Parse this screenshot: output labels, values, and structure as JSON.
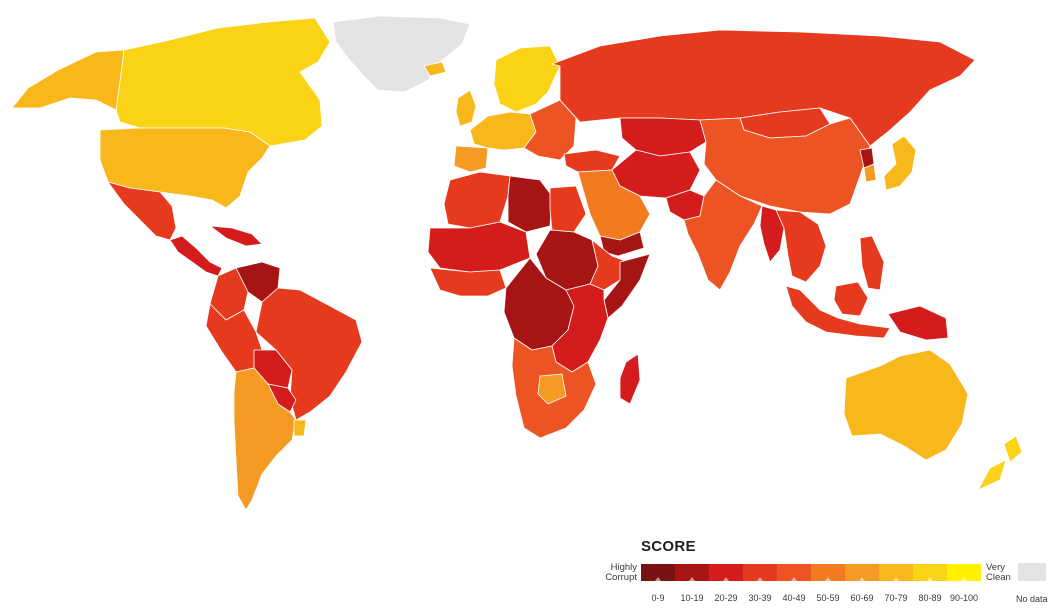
{
  "legend": {
    "title": "SCORE",
    "low_label_line1": "Highly",
    "low_label_line2": "Corrupt",
    "high_label_line1": "Very",
    "high_label_line2": "Clean",
    "no_data_label": "No data",
    "no_data_color": "#e3e3e3",
    "bins": [
      {
        "label": "0-9",
        "color": "#7a1212"
      },
      {
        "label": "10-19",
        "color": "#a71414"
      },
      {
        "label": "20-29",
        "color": "#d41c1c"
      },
      {
        "label": "30-39",
        "color": "#e53a1e"
      },
      {
        "label": "40-49",
        "color": "#ec5523"
      },
      {
        "label": "50-59",
        "color": "#f27b22"
      },
      {
        "label": "60-69",
        "color": "#f59a22"
      },
      {
        "label": "70-79",
        "color": "#f8b81c"
      },
      {
        "label": "80-89",
        "color": "#fad316"
      },
      {
        "label": "90-100",
        "color": "#fff100"
      }
    ]
  },
  "map": {
    "background": "#ffffff",
    "regions": [
      {
        "name": "greenland",
        "bin": "no-data"
      },
      {
        "name": "alaska",
        "bin": "70-79"
      },
      {
        "name": "canada",
        "bin": "80-89"
      },
      {
        "name": "usa",
        "bin": "70-79"
      },
      {
        "name": "mexico",
        "bin": "30-39"
      },
      {
        "name": "central-america",
        "bin": "20-29"
      },
      {
        "name": "caribbean",
        "bin": "20-29"
      },
      {
        "name": "venezuela",
        "bin": "10-19"
      },
      {
        "name": "colombia",
        "bin": "30-39"
      },
      {
        "name": "brazil",
        "bin": "30-39"
      },
      {
        "name": "peru",
        "bin": "30-39"
      },
      {
        "name": "bolivia",
        "bin": "20-29"
      },
      {
        "name": "paraguay",
        "bin": "20-29"
      },
      {
        "name": "argentina-chile",
        "bin": "60-69"
      },
      {
        "name": "uruguay",
        "bin": "70-79"
      },
      {
        "name": "iceland",
        "bin": "70-79"
      },
      {
        "name": "uk",
        "bin": "70-79"
      },
      {
        "name": "scandinavia",
        "bin": "80-89"
      },
      {
        "name": "western-europe",
        "bin": "70-79"
      },
      {
        "name": "iberia",
        "bin": "60-69"
      },
      {
        "name": "eastern-europe",
        "bin": "40-49"
      },
      {
        "name": "russia",
        "bin": "30-39"
      },
      {
        "name": "turkey",
        "bin": "30-39"
      },
      {
        "name": "central-asia",
        "bin": "20-29"
      },
      {
        "name": "iran-afghanistan",
        "bin": "20-29"
      },
      {
        "name": "china",
        "bin": "40-49"
      },
      {
        "name": "mongolia",
        "bin": "30-39"
      },
      {
        "name": "north-korea",
        "bin": "10-19"
      },
      {
        "name": "south-korea",
        "bin": "60-69"
      },
      {
        "name": "japan",
        "bin": "70-79"
      },
      {
        "name": "arabia",
        "bin": "50-59"
      },
      {
        "name": "yemen",
        "bin": "10-19"
      },
      {
        "name": "india",
        "bin": "40-49"
      },
      {
        "name": "pakistan",
        "bin": "20-29"
      },
      {
        "name": "myanmar",
        "bin": "20-29"
      },
      {
        "name": "indochina",
        "bin": "30-39"
      },
      {
        "name": "indonesia",
        "bin": "30-39"
      },
      {
        "name": "philippines",
        "bin": "30-39"
      },
      {
        "name": "papua-new-guinea",
        "bin": "20-29"
      },
      {
        "name": "north-africa",
        "bin": "30-39"
      },
      {
        "name": "libya",
        "bin": "10-19"
      },
      {
        "name": "sahel",
        "bin": "20-29"
      },
      {
        "name": "west-africa",
        "bin": "30-39"
      },
      {
        "name": "sudan-region",
        "bin": "10-19"
      },
      {
        "name": "horn-of-africa",
        "bin": "30-39"
      },
      {
        "name": "somalia",
        "bin": "10-19"
      },
      {
        "name": "central-africa",
        "bin": "10-19"
      },
      {
        "name": "east-africa",
        "bin": "20-29"
      },
      {
        "name": "southern-africa",
        "bin": "40-49"
      },
      {
        "name": "botswana",
        "bin": "60-69"
      },
      {
        "name": "madagascar",
        "bin": "20-29"
      },
      {
        "name": "australia",
        "bin": "70-79"
      },
      {
        "name": "new-zealand",
        "bin": "80-89"
      }
    ]
  }
}
